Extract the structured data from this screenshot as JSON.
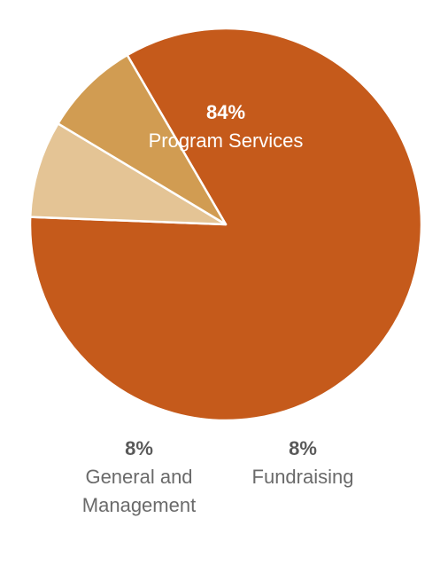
{
  "chart_data": {
    "type": "pie",
    "slices": [
      {
        "label": "Program Services",
        "value": 84,
        "value_label": "84%",
        "color": "#c55a1b"
      },
      {
        "label": "Fundraising",
        "value": 8,
        "value_label": "8%",
        "color": "#e4c495"
      },
      {
        "label": "General and Management",
        "value": 8,
        "value_label": "8%",
        "color": "#d19c52"
      }
    ],
    "label_colors": {
      "inside": "#ffffff",
      "outside_value": "#5a5a5a",
      "outside_name": "#6a6a6a"
    },
    "slice_border_color": "#ffffff"
  }
}
